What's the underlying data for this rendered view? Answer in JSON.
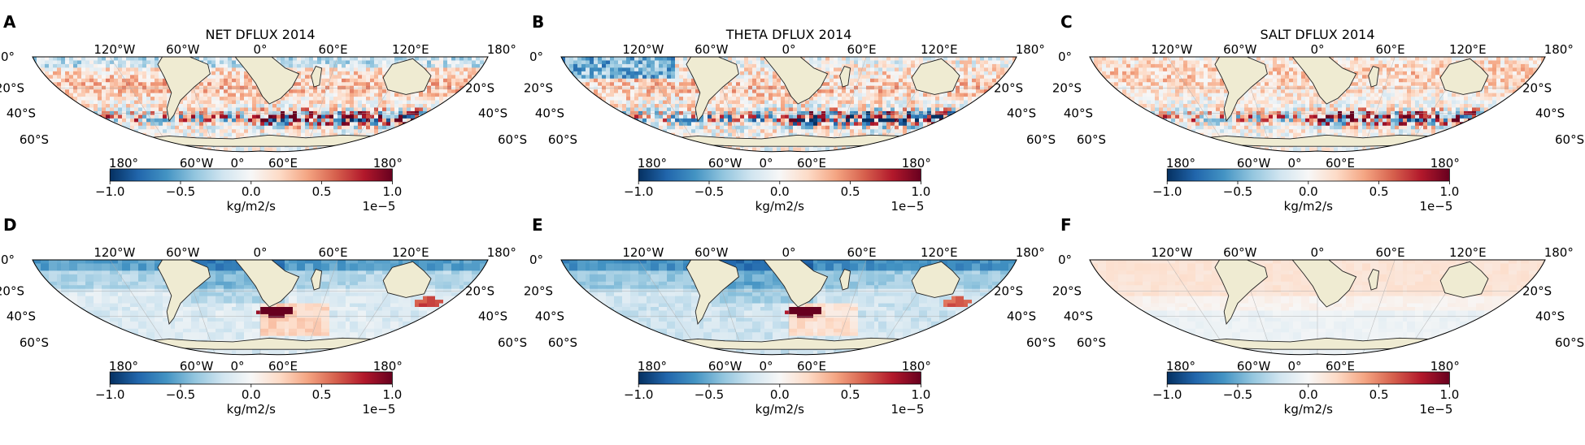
{
  "figure": {
    "colorbar": {
      "ticks": [
        "−1.0",
        "−0.5",
        "0.0",
        "0.5",
        "1.0"
      ],
      "unit": "kg/m2/s",
      "scale": "1e−5",
      "cmap": [
        "#053061",
        "#2166ac",
        "#4393c3",
        "#92c5de",
        "#d1e5f0",
        "#f7f7f7",
        "#fddbc7",
        "#f4a582",
        "#d6604d",
        "#b2182b",
        "#67001f"
      ]
    },
    "map_labels": {
      "lon_top": [
        "120°W",
        "60°W",
        "0°",
        "60°E",
        "120°E",
        "180°"
      ],
      "lon_bottom": [
        "180°",
        "60°W",
        "0°",
        "60°E",
        "180°"
      ],
      "lat_left": [
        "0°",
        "20°S",
        "40°S",
        "60°S"
      ],
      "lat_right": [
        "20°S",
        "40°S",
        "60°S"
      ]
    },
    "colors": {
      "land": "#efebd2",
      "coast": "#222222",
      "grid": "#aaaaaa"
    }
  },
  "chart_data": [
    {
      "type": "heatmap",
      "letter": "A",
      "title": "NET DFLUX 2014",
      "vlim": [
        -1.0,
        1.0
      ],
      "field": "net_anomaly"
    },
    {
      "type": "heatmap",
      "letter": "B",
      "title": "THETA DFLUX 2014",
      "vlim": [
        -1.0,
        1.0
      ],
      "field": "theta_anomaly"
    },
    {
      "type": "heatmap",
      "letter": "C",
      "title": "SALT DFLUX 2014",
      "vlim": [
        -1.0,
        1.0
      ],
      "field": "salt_anomaly"
    },
    {
      "type": "heatmap",
      "letter": "D",
      "title": "",
      "vlim": [
        -1.0,
        1.0
      ],
      "field": "net_mean"
    },
    {
      "type": "heatmap",
      "letter": "E",
      "title": "",
      "vlim": [
        -1.0,
        1.0
      ],
      "field": "theta_mean"
    },
    {
      "type": "heatmap",
      "letter": "F",
      "title": "",
      "vlim": [
        -1.0,
        1.0
      ],
      "field": "salt_mean"
    }
  ]
}
